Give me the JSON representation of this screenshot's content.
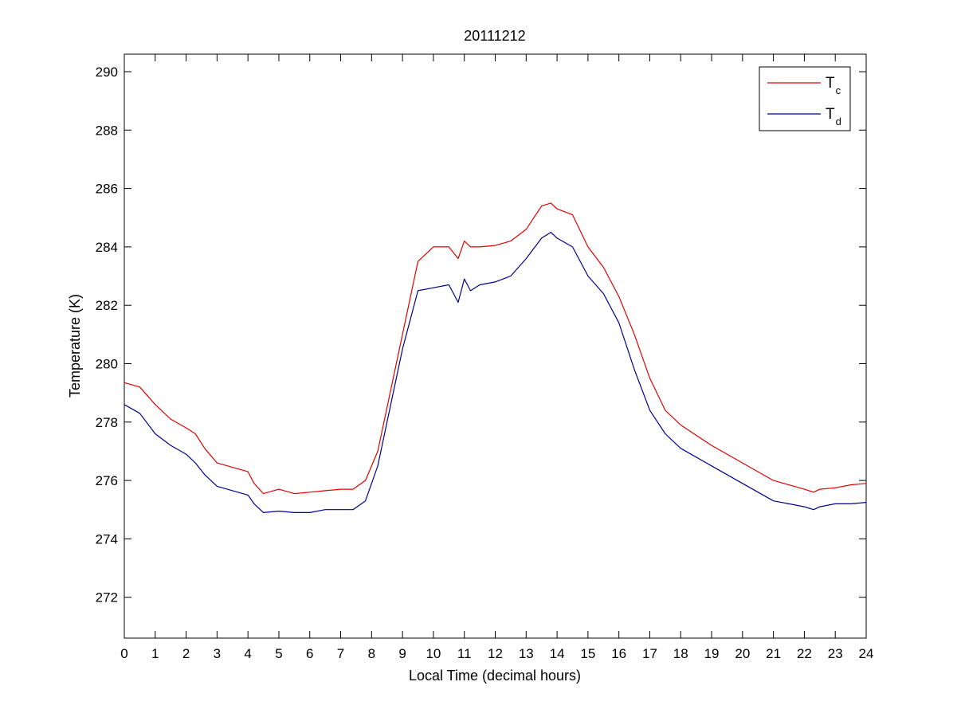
{
  "chart_data": {
    "type": "line",
    "title": "20111212",
    "xlabel": "Local Time (decimal hours)",
    "ylabel": "Temperature (K)",
    "xlim": [
      0,
      24
    ],
    "ylim": [
      270.6,
      290.6
    ],
    "x_ticks": [
      "0",
      "1",
      "2",
      "3",
      "4",
      "5",
      "6",
      "7",
      "8",
      "9",
      "10",
      "11",
      "12",
      "13",
      "14",
      "15",
      "16",
      "17",
      "18",
      "19",
      "20",
      "21",
      "22",
      "23",
      "24"
    ],
    "y_ticks": [
      "272",
      "274",
      "276",
      "278",
      "280",
      "282",
      "284",
      "286",
      "288",
      "290"
    ],
    "grid": false,
    "legend_position": "top-right",
    "series": [
      {
        "name": "T",
        "subscript": "c",
        "color": "#e00000",
        "x": [
          0,
          0.5,
          1,
          1.5,
          2,
          2.3,
          2.6,
          3,
          3.5,
          4,
          4.2,
          4.5,
          5,
          5.5,
          6,
          6.5,
          7,
          7.4,
          7.8,
          8.2,
          8.5,
          9,
          9.5,
          10,
          10.5,
          10.8,
          11,
          11.2,
          11.5,
          12,
          12.5,
          13,
          13.5,
          13.8,
          14,
          14.5,
          15,
          15.5,
          16,
          16.5,
          17,
          17.5,
          18,
          19,
          20,
          21,
          21.5,
          22,
          22.3,
          22.5,
          23,
          23.5,
          24
        ],
        "values": [
          279.35,
          279.2,
          278.6,
          278.1,
          277.8,
          277.6,
          277.1,
          276.6,
          276.45,
          276.3,
          275.9,
          275.55,
          275.7,
          275.55,
          275.6,
          275.65,
          275.7,
          275.7,
          276.0,
          277.0,
          278.5,
          281.0,
          283.5,
          284.0,
          284.0,
          283.6,
          284.2,
          284.0,
          284.0,
          284.05,
          284.2,
          284.6,
          285.4,
          285.5,
          285.3,
          285.1,
          284.0,
          283.3,
          282.3,
          281.0,
          279.5,
          278.4,
          277.9,
          277.2,
          276.6,
          276.0,
          275.85,
          275.7,
          275.6,
          275.7,
          275.75,
          275.85,
          275.9
        ]
      },
      {
        "name": "T",
        "subscript": "d",
        "color": "#00008b",
        "x": [
          0,
          0.5,
          1,
          1.5,
          2,
          2.3,
          2.6,
          3,
          3.5,
          4,
          4.2,
          4.5,
          5,
          5.5,
          6,
          6.5,
          7,
          7.4,
          7.8,
          8.2,
          8.5,
          9,
          9.5,
          10,
          10.5,
          10.8,
          11,
          11.2,
          11.5,
          12,
          12.5,
          13,
          13.5,
          13.8,
          14,
          14.5,
          15,
          15.5,
          16,
          16.5,
          17,
          17.5,
          18,
          19,
          20,
          21,
          21.5,
          22,
          22.3,
          22.5,
          23,
          23.5,
          24
        ],
        "values": [
          278.6,
          278.3,
          277.6,
          277.2,
          276.9,
          276.6,
          276.2,
          275.8,
          275.65,
          275.5,
          275.2,
          274.9,
          274.95,
          274.9,
          274.9,
          275.0,
          275.0,
          275.0,
          275.3,
          276.5,
          278.0,
          280.5,
          282.5,
          282.6,
          282.7,
          282.1,
          282.9,
          282.5,
          282.7,
          282.8,
          283.0,
          283.6,
          284.3,
          284.5,
          284.3,
          284.0,
          283.0,
          282.4,
          281.4,
          279.8,
          278.4,
          277.6,
          277.1,
          276.5,
          275.9,
          275.3,
          275.2,
          275.1,
          275.0,
          275.1,
          275.2,
          275.2,
          275.25
        ]
      }
    ]
  }
}
